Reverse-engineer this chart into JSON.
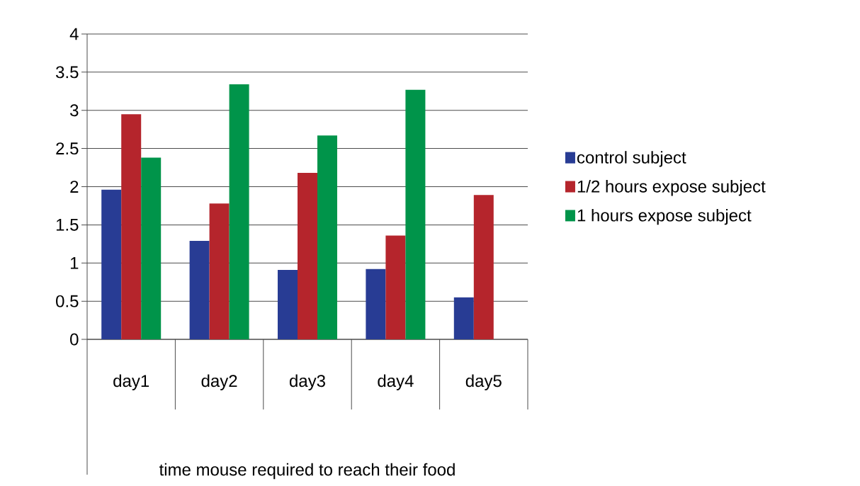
{
  "chart_data": {
    "type": "bar",
    "xlabel": "time mouse required to reach their food",
    "categories": [
      "day1",
      "day2",
      "day3",
      "day4",
      "day5"
    ],
    "series": [
      {
        "name": "control  subject",
        "color": "#283c94",
        "values": [
          1.96,
          1.29,
          0.91,
          0.92,
          0.55
        ]
      },
      {
        "name": "1/2 hours expose subject",
        "color": "#b5252c",
        "values": [
          2.95,
          1.78,
          2.18,
          1.36,
          1.89
        ]
      },
      {
        "name": "1 hours expose subject",
        "color": "#00944a",
        "values": [
          2.38,
          3.34,
          2.67,
          3.27,
          null
        ]
      }
    ],
    "ylim": [
      0,
      4
    ],
    "yticks": [
      0,
      0.5,
      1,
      1.5,
      2,
      2.5,
      3,
      3.5,
      4
    ],
    "grid": "y",
    "legend": "right"
  }
}
